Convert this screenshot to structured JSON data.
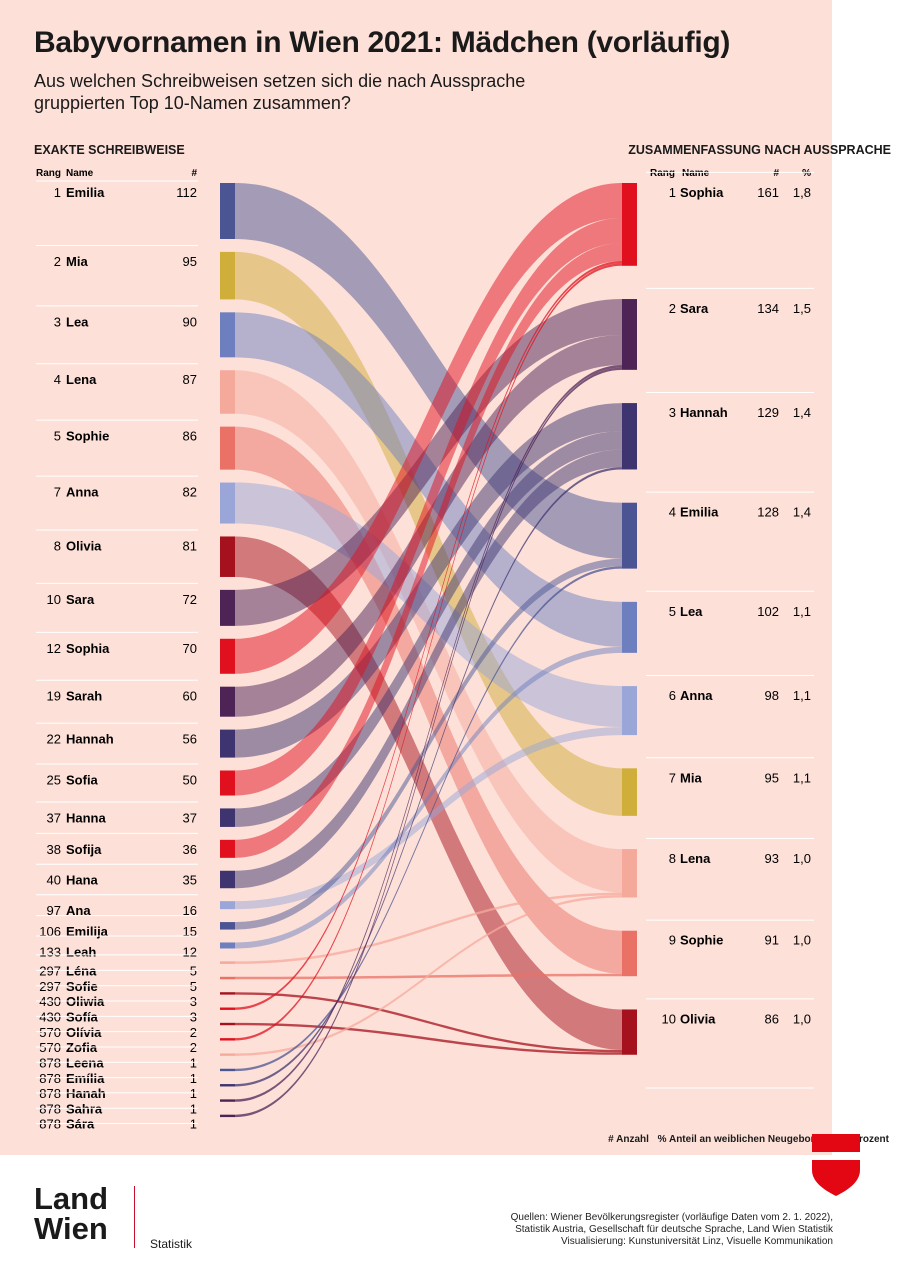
{
  "header": {
    "title": "Babyvornamen in Wien 2021: Mädchen (vorläufig)",
    "subtitle": "Aus welchen Schreibweisen setzen sich die nach Aussprache gruppierten Top 10-Namen zusammen?"
  },
  "left_panel": {
    "heading": "EXAKTE SCHREIBWEISE",
    "col_rank": "Rang",
    "col_name": "Name",
    "col_count": "#"
  },
  "right_panel": {
    "heading": "ZUSAMMENFASSUNG NACH AUSSPRACHE",
    "col_rank": "Rang",
    "col_name": "Name",
    "col_count": "#",
    "col_pct": "%"
  },
  "chart_data": {
    "type": "sankey",
    "colors": {
      "Sophia": "#e0101e",
      "Sara": "#4e2355",
      "Hannah": "#3e3570",
      "Emilia": "#4c5593",
      "Lea": "#6e7fbf",
      "Anna": "#9aa6d8",
      "Mia": "#cfae3a",
      "Lena": "#f5a99b",
      "Sophie": "#ea7166",
      "Olivia": "#a5121d"
    },
    "spellings": [
      {
        "rank": "1",
        "name": "Emilia",
        "count": 112,
        "group": "Emilia"
      },
      {
        "rank": "2",
        "name": "Mia",
        "count": 95,
        "group": "Mia"
      },
      {
        "rank": "3",
        "name": "Lea",
        "count": 90,
        "group": "Lea"
      },
      {
        "rank": "4",
        "name": "Lena",
        "count": 87,
        "group": "Lena"
      },
      {
        "rank": "5",
        "name": "Sophie",
        "count": 86,
        "group": "Sophie"
      },
      {
        "rank": "7",
        "name": "Anna",
        "count": 82,
        "group": "Anna"
      },
      {
        "rank": "8",
        "name": "Olivia",
        "count": 81,
        "group": "Olivia"
      },
      {
        "rank": "10",
        "name": "Sara",
        "count": 72,
        "group": "Sara"
      },
      {
        "rank": "12",
        "name": "Sophia",
        "count": 70,
        "group": "Sophia"
      },
      {
        "rank": "19",
        "name": "Sarah",
        "count": 60,
        "group": "Sara"
      },
      {
        "rank": "22",
        "name": "Hannah",
        "count": 56,
        "group": "Hannah"
      },
      {
        "rank": "25",
        "name": "Sofia",
        "count": 50,
        "group": "Sophia"
      },
      {
        "rank": "37",
        "name": "Hanna",
        "count": 37,
        "group": "Hannah"
      },
      {
        "rank": "38",
        "name": "Sofija",
        "count": 36,
        "group": "Sophia"
      },
      {
        "rank": "40",
        "name": "Hana",
        "count": 35,
        "group": "Hannah"
      },
      {
        "rank": "97",
        "name": "Ana",
        "count": 16,
        "group": "Anna"
      },
      {
        "rank": "106",
        "name": "Emilija",
        "count": 15,
        "group": "Emilia"
      },
      {
        "rank": "133",
        "name": "Leah",
        "count": 12,
        "group": "Lea"
      },
      {
        "rank": "297",
        "name": "Léna",
        "count": 5,
        "group": "Lena"
      },
      {
        "rank": "297",
        "name": "Sofie",
        "count": 5,
        "group": "Sophie"
      },
      {
        "rank": "430",
        "name": "Oliwia",
        "count": 3,
        "group": "Olivia"
      },
      {
        "rank": "430",
        "name": "Sofía",
        "count": 3,
        "group": "Sophia"
      },
      {
        "rank": "570",
        "name": "Olívia",
        "count": 2,
        "group": "Olivia"
      },
      {
        "rank": "570",
        "name": "Zofia",
        "count": 2,
        "group": "Sophia"
      },
      {
        "rank": "878",
        "name": "Leena",
        "count": 1,
        "group": "Lena"
      },
      {
        "rank": "878",
        "name": "Emília",
        "count": 1,
        "group": "Emilia"
      },
      {
        "rank": "878",
        "name": "Hanah",
        "count": 1,
        "group": "Hannah"
      },
      {
        "rank": "878",
        "name": "Sahra",
        "count": 1,
        "group": "Sara"
      },
      {
        "rank": "878",
        "name": "Sára",
        "count": 1,
        "group": "Sara"
      }
    ],
    "groups": [
      {
        "rank": "1",
        "name": "Sophia",
        "count": 161,
        "pct": "1,8"
      },
      {
        "rank": "2",
        "name": "Sara",
        "count": 134,
        "pct": "1,5"
      },
      {
        "rank": "3",
        "name": "Hannah",
        "count": 129,
        "pct": "1,4"
      },
      {
        "rank": "4",
        "name": "Emilia",
        "count": 128,
        "pct": "1,4"
      },
      {
        "rank": "5",
        "name": "Lea",
        "count": 102,
        "pct": "1,1"
      },
      {
        "rank": "6",
        "name": "Anna",
        "count": 98,
        "pct": "1,1"
      },
      {
        "rank": "7",
        "name": "Mia",
        "count": 95,
        "pct": "1,1"
      },
      {
        "rank": "8",
        "name": "Lena",
        "count": 93,
        "pct": "1,0"
      },
      {
        "rank": "9",
        "name": "Sophie",
        "count": 91,
        "pct": "1,0"
      },
      {
        "rank": "10",
        "name": "Olivia",
        "count": 86,
        "pct": "1,0"
      }
    ]
  },
  "footnote": {
    "count_legend": "# Anzahl",
    "pct_legend": "% Anteil an weiblichen Neugeborenen in Prozent"
  },
  "logo": {
    "line1": "Land",
    "line2": "Wien",
    "sub": "Statistik",
    "shield_color": "#e30613"
  },
  "sources": {
    "line1": "Quellen: Wiener Bevölkerungsregister (vorläufige Daten vom 2. 1. 2022),",
    "line2": "Statistik Austria, Gesellschaft für deutsche Sprache, Land Wien Statistik",
    "line3": "Visualisierung: Kunstuniversität Linz, Visuelle Kommunikation"
  }
}
